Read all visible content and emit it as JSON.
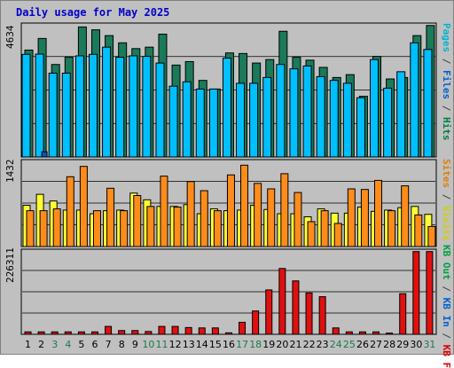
{
  "title": "Daily usage for May 2025",
  "panels": {
    "top": {
      "ymax_label": "4634",
      "legend": [
        {
          "text": "Pages",
          "color": "#00b4d4"
        },
        {
          "text": " / ",
          "color": "#444444"
        },
        {
          "text": "Files",
          "color": "#0060d0"
        },
        {
          "text": " / ",
          "color": "#444444"
        },
        {
          "text": "Hits",
          "color": "#008040"
        }
      ]
    },
    "middle": {
      "ymax_label": "1432",
      "legend": [
        {
          "text": "Sites",
          "color": "#e08000"
        },
        {
          "text": " / ",
          "color": "#444444"
        },
        {
          "text": "Visits",
          "color": "#d0d000"
        }
      ]
    },
    "bottom": {
      "ymax_label": "226311",
      "legend": [
        {
          "text": "KB Out",
          "color": "#00a040"
        },
        {
          "text": " / ",
          "color": "#444444"
        },
        {
          "text": "KB In",
          "color": "#0060d0"
        },
        {
          "text": " / ",
          "color": "#444444"
        },
        {
          "text": "KB F",
          "color": "#e00000"
        }
      ]
    }
  },
  "colors": {
    "background": "#c0c0c0",
    "hits": "#1a7a5a",
    "files": "#00bfff",
    "pages": "#1050c0",
    "visits": "#ffff33",
    "sites": "#ff8c1a",
    "kbf": "#e01010",
    "weekday_label": "#000000",
    "weekend_label": "#1a7a4a"
  },
  "chart_data": {
    "type": "bar",
    "title": "Daily usage for May 2025",
    "categories": [
      "1",
      "2",
      "3",
      "4",
      "5",
      "6",
      "7",
      "8",
      "9",
      "10",
      "11",
      "12",
      "13",
      "14",
      "15",
      "16",
      "17",
      "18",
      "19",
      "20",
      "21",
      "22",
      "23",
      "24",
      "25",
      "26",
      "27",
      "28",
      "29",
      "30",
      "31"
    ],
    "weekend_days": [
      "3",
      "4",
      "10",
      "11",
      "17",
      "18",
      "24",
      "25",
      "31"
    ],
    "panels": [
      {
        "ylim": [
          0,
          4634
        ],
        "series": [
          {
            "name": "Hits",
            "values": [
              3700,
              4100,
              3200,
              3450,
              4500,
              4400,
              4200,
              3950,
              3750,
              3800,
              4250,
              3180,
              3300,
              2650,
              2350,
              3600,
              3580,
              3250,
              3370,
              4350,
              3450,
              3350,
              3100,
              2750,
              2850,
              2100,
              3480,
              2700,
              2750,
              4200,
              4550
            ]
          },
          {
            "name": "Files",
            "values": [
              3550,
              3560,
              2900,
              2900,
              3500,
              3550,
              3800,
              3450,
              3500,
              3480,
              3250,
              2450,
              2600,
              2350,
              2350,
              3420,
              2550,
              2550,
              2750,
              3200,
              3050,
              3150,
              2780,
              2650,
              2550,
              2050,
              3370,
              2380,
              2950,
              3950,
              3720
            ]
          },
          {
            "name": "Pages",
            "values": [
              0,
              180,
              0,
              0,
              0,
              0,
              0,
              0,
              0,
              0,
              0,
              0,
              0,
              0,
              0,
              0,
              0,
              0,
              0,
              0,
              0,
              0,
              0,
              0,
              0,
              0,
              0,
              0,
              0,
              0,
              0
            ]
          }
        ]
      },
      {
        "ylim": [
          0,
          1432
        ],
        "series": [
          {
            "name": "Visits",
            "values": [
              680,
              860,
              750,
              600,
              600,
              540,
              590,
              600,
              880,
              770,
              660,
              660,
              690,
              540,
              620,
              590,
              600,
              680,
              610,
              540,
              540,
              490,
              620,
              550,
              550,
              650,
              580,
              600,
              640,
              660,
              530
            ]
          },
          {
            "name": "Sites",
            "values": [
              590,
              590,
              620,
              1150,
              1320,
              590,
              960,
              590,
              840,
              660,
              1160,
              650,
              1070,
              920,
              590,
              1180,
              1340,
              1040,
              950,
              1200,
              890,
              410,
              590,
              380,
              950,
              940,
              1090,
              590,
              1000,
              520,
              330
            ]
          }
        ]
      },
      {
        "ylim": [
          0,
          226311
        ],
        "series": [
          {
            "name": "KB F",
            "values": [
              6500,
              6500,
              6500,
              6500,
              6500,
              6500,
              21000,
              10000,
              10000,
              7500,
              21000,
              21000,
              18000,
              17000,
              17000,
              4000,
              32000,
              62000,
              118000,
              175000,
              142000,
              110000,
              100000,
              17000,
              6500,
              6500,
              6500,
              3200,
              108000,
              220000,
              220000
            ]
          }
        ]
      }
    ]
  }
}
